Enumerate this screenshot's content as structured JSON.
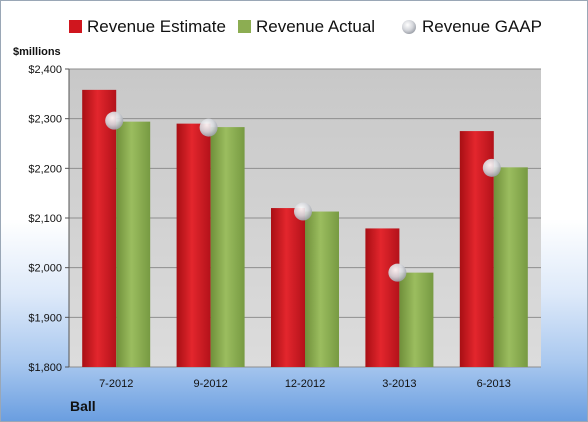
{
  "chart_data": {
    "type": "bar",
    "unit_label": "$millions",
    "company": "Ball",
    "categories": [
      "7-2012",
      "9-2012",
      "12-2012",
      "3-2013",
      "6-2013"
    ],
    "series": [
      {
        "name": "Revenue Estimate",
        "kind": "bar",
        "color": "#d0161e",
        "values": [
          2358,
          2290,
          2120,
          2079,
          2275
        ]
      },
      {
        "name": "Revenue Actual",
        "kind": "bar",
        "color": "#8cad52",
        "values": [
          2294,
          2283,
          2113,
          1990,
          2202
        ]
      },
      {
        "name": "Revenue GAAP",
        "kind": "marker",
        "color": "#c9ccd2",
        "values": [
          2296,
          2282,
          2113,
          1990,
          2201
        ]
      }
    ],
    "ylim": [
      1800,
      2400
    ],
    "yticks": [
      1800,
      1900,
      2000,
      2100,
      2200,
      2300,
      2400
    ],
    "ytick_labels": [
      "$1,800",
      "$1,900",
      "$2,000",
      "$2,100",
      "$2,200",
      "$2,300",
      "$2,400"
    ],
    "grid": true,
    "legend_position": "top"
  }
}
